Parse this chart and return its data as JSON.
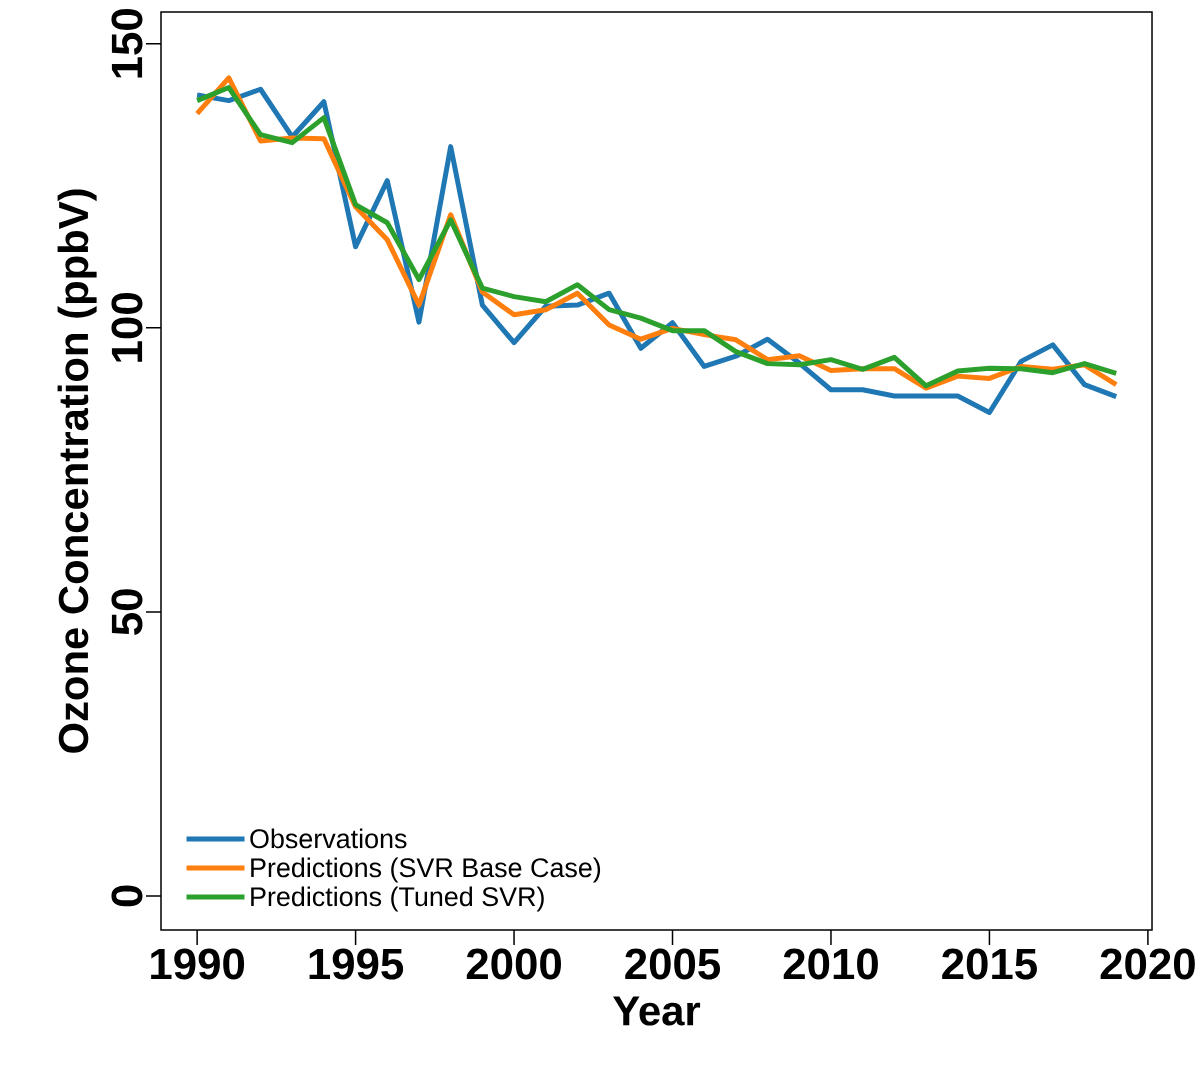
{
  "chart_data": {
    "type": "line",
    "xlabel": "Year",
    "ylabel": "Ozone Concentration (ppbV)",
    "x": [
      1990,
      1991,
      1992,
      1993,
      1994,
      1995,
      1996,
      1997,
      1998,
      1999,
      2000,
      2001,
      2002,
      2003,
      2004,
      2005,
      2006,
      2007,
      2008,
      2009,
      2010,
      2011,
      2012,
      2013,
      2014,
      2015,
      2016,
      2017,
      2018,
      2019
    ],
    "series": [
      {
        "name": "Observations",
        "color": "#1f77b4",
        "values": [
          141,
          140,
          142,
          133.6,
          139.8,
          114.3,
          125.9,
          101,
          131.9,
          104,
          97.4,
          103.8,
          104,
          106.1,
          96.4,
          100.9,
          93.2,
          95,
          98,
          93.8,
          89.1,
          89.1,
          88,
          88,
          88,
          85.1,
          94.1,
          97,
          90,
          87.9
        ]
      },
      {
        "name": "Predictions (SVR Base Case)",
        "color": "#ff7f0e",
        "values": [
          137.7,
          144,
          132.9,
          133.4,
          133.3,
          121.3,
          115.5,
          104,
          119.9,
          106.3,
          102.3,
          103.2,
          106.1,
          100.5,
          98,
          99.9,
          98.8,
          97.9,
          94.4,
          95.1,
          92.5,
          92.8,
          92.8,
          89.4,
          91.5,
          91.1,
          93.2,
          92.7,
          93.5,
          90
        ]
      },
      {
        "name": "Predictions (Tuned SVR)",
        "color": "#2ca02c",
        "values": [
          140,
          142.3,
          134,
          132.6,
          137,
          121.7,
          118.5,
          108.5,
          119,
          107,
          105.5,
          104.6,
          107.6,
          103.2,
          101.7,
          99.5,
          99.5,
          95.8,
          93.7,
          93.5,
          94.4,
          92.7,
          94.8,
          89.8,
          92.4,
          92.9,
          92.8,
          92.1,
          93.7,
          92
        ]
      }
    ],
    "xlim": [
      1988.86,
      2020.13
    ],
    "ylim": [
      -6,
      155.6
    ],
    "xticks": [
      1990,
      1995,
      2000,
      2005,
      2010,
      2015,
      2020
    ],
    "yticks": [
      0,
      50,
      100,
      150
    ],
    "grid": false,
    "legend": "bottom left",
    "line_style": "solid",
    "marker": "none"
  }
}
